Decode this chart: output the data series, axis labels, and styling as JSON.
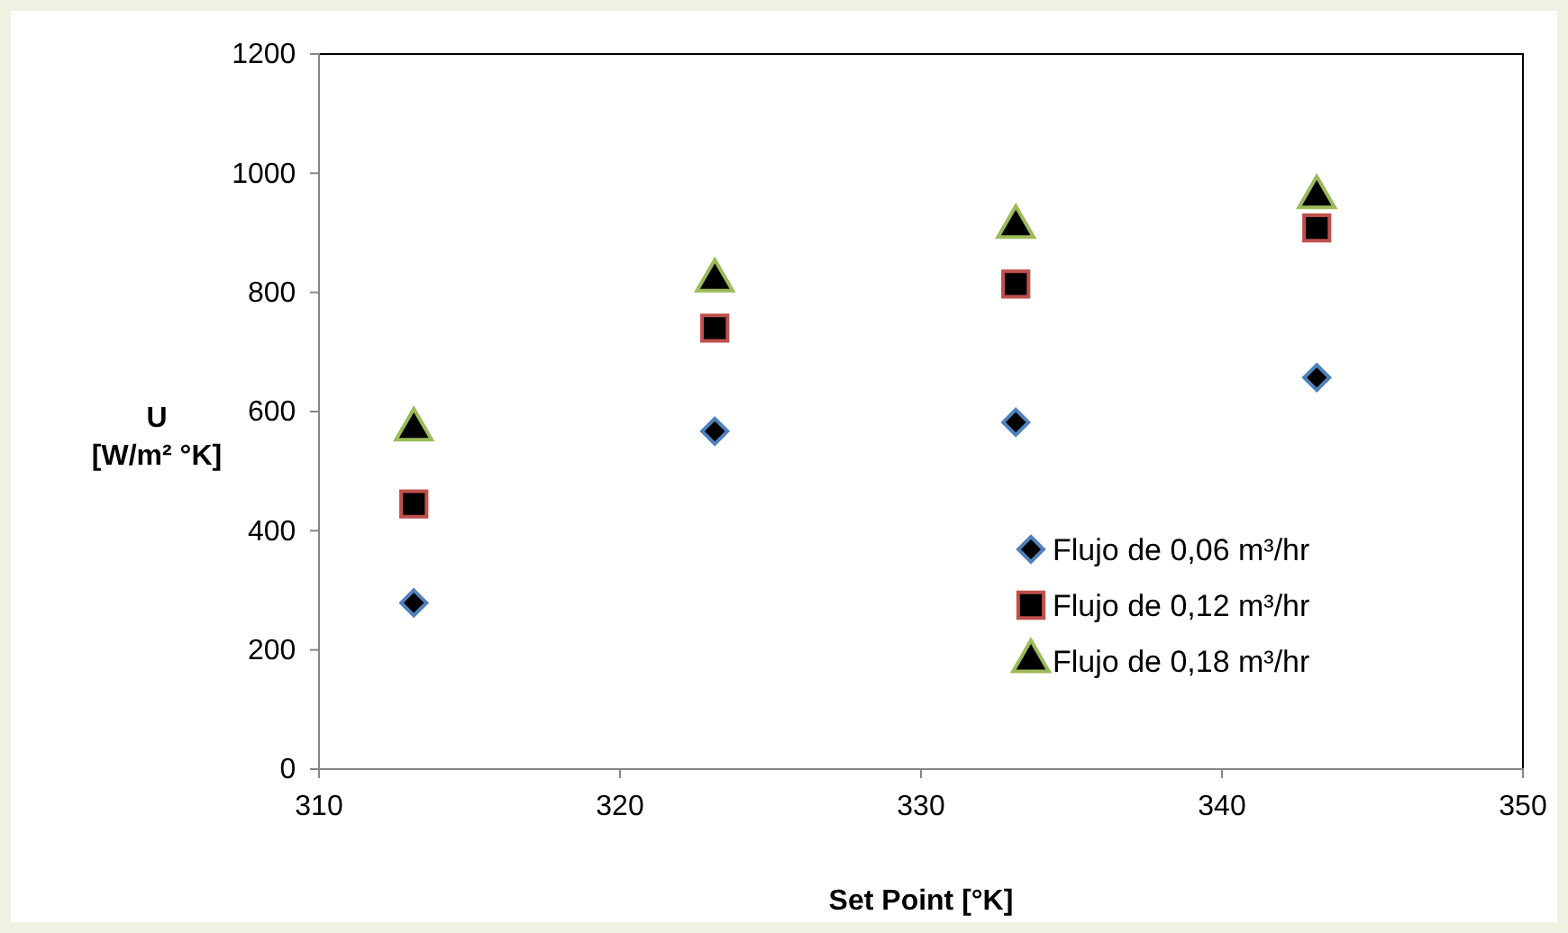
{
  "chart_data": {
    "type": "scatter",
    "xlabel": "Set Point [°K]",
    "ylabel": "U\n[W/m² °K]",
    "xlim": [
      310,
      350
    ],
    "xticks": [
      310,
      320,
      330,
      340,
      350
    ],
    "ylim": [
      0,
      1200
    ],
    "yticks": [
      0,
      200,
      400,
      600,
      800,
      1000,
      1200
    ],
    "grid": false,
    "legend": "bottom right",
    "series": [
      {
        "name": "Flujo de 0,06 m³/hr",
        "color": "#4f81bd",
        "marker": "diamond",
        "x": [
          313.15,
          323.15,
          333.15,
          343.15
        ],
        "values": [
          279,
          567,
          582,
          657
        ]
      },
      {
        "name": "Flujo de 0,12 m³/hr",
        "color": "#c0504d",
        "marker": "square",
        "x": [
          313.15,
          323.15,
          333.15,
          343.15
        ],
        "values": [
          445,
          740,
          814,
          908
        ]
      },
      {
        "name": "Flujo de 0,18 m³/hr",
        "color": "#9bbb59",
        "marker": "triangle",
        "x": [
          313.15,
          323.15,
          333.15,
          343.15
        ],
        "values": [
          570,
          820,
          910,
          960
        ]
      }
    ]
  }
}
